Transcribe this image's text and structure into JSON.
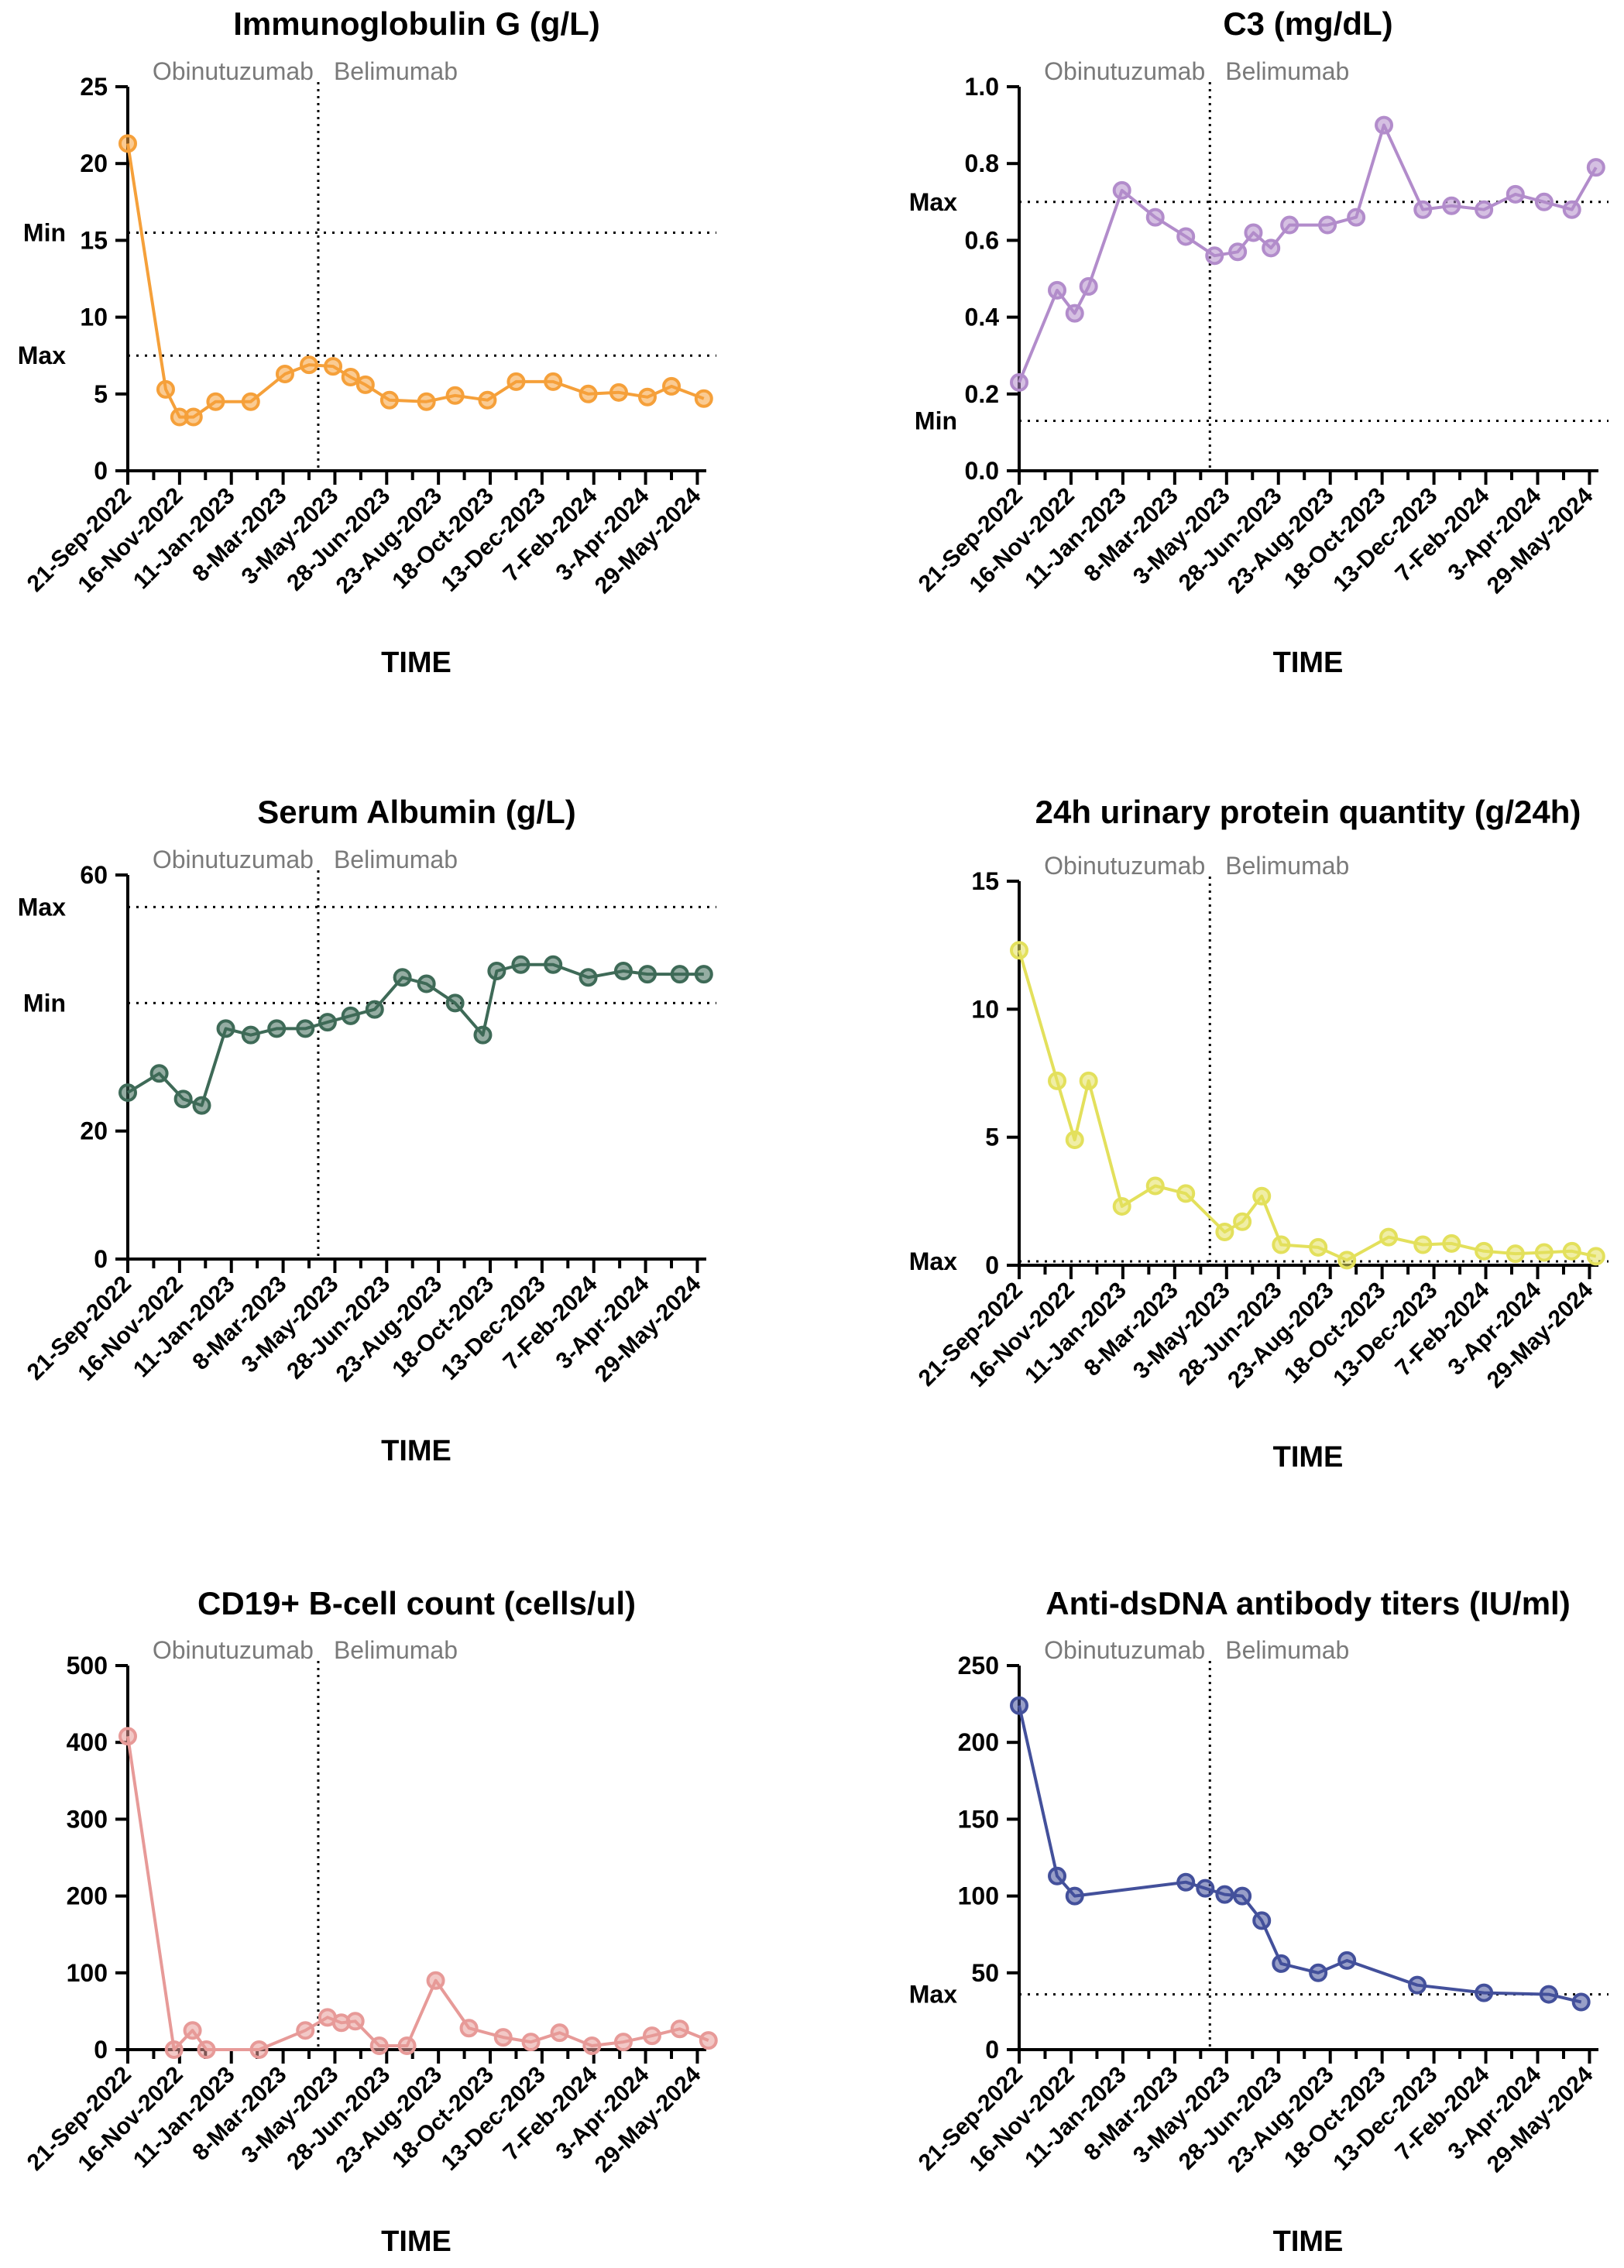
{
  "figure": {
    "x_axis_label": "TIME",
    "date_ticks": [
      "21-Sep-2022",
      "16-Nov-2022",
      "11-Jan-2023",
      "8-Mar-2023",
      "3-May-2023",
      "28-Jun-2023",
      "23-Aug-2023",
      "18-Oct-2023",
      "13-Dec-2023",
      "7-Feb-2024",
      "3-Apr-2024",
      "29-May-2024"
    ],
    "phase_labels": [
      "Obinutuzumab",
      "Belimumab"
    ],
    "phase_change_date": "2023-04-15"
  },
  "chart_data": [
    {
      "type": "line",
      "title": "Immunoglobulin G (g/L)",
      "color": "#F5A03A",
      "ylim": [
        0,
        25
      ],
      "yticks": [
        0,
        5,
        10,
        15,
        20,
        25
      ],
      "ylabel": "",
      "xlabel": "TIME",
      "reference_lines": [
        {
          "label": "Min",
          "value": 15.5
        },
        {
          "label": "Max",
          "value": 7.5
        }
      ],
      "series": [
        {
          "name": "IgG",
          "x": [
            "2022-09-21",
            "2022-11-01",
            "2022-11-16",
            "2022-12-01",
            "2022-12-25",
            "2023-02-01",
            "2023-03-10",
            "2023-04-05",
            "2023-05-01",
            "2023-05-20",
            "2023-06-05",
            "2023-07-01",
            "2023-08-10",
            "2023-09-10",
            "2023-10-15",
            "2023-11-15",
            "2023-12-25",
            "2024-02-01",
            "2024-03-05",
            "2024-04-05",
            "2024-05-01",
            "2024-06-05"
          ],
          "y": [
            21.3,
            5.3,
            3.5,
            3.5,
            4.5,
            4.5,
            6.3,
            6.9,
            6.8,
            6.1,
            5.6,
            4.6,
            4.5,
            4.9,
            4.6,
            5.8,
            5.8,
            5.0,
            5.1,
            4.8,
            5.5,
            4.7
          ]
        }
      ]
    },
    {
      "type": "line",
      "title": "C3 (mg/dL)",
      "color": "#B28CCB",
      "ylim": [
        0,
        1.0
      ],
      "yticks": [
        0.0,
        0.2,
        0.4,
        0.6,
        0.8,
        1.0
      ],
      "ytick_labels": [
        "0.0",
        "0.2",
        "0.4",
        "0.6",
        "0.8",
        "1.0"
      ],
      "ylabel": "",
      "xlabel": "TIME",
      "reference_lines": [
        {
          "label": "Max",
          "value": 0.7
        },
        {
          "label": "Min",
          "value": 0.13
        }
      ],
      "series": [
        {
          "name": "C3",
          "x": [
            "2022-09-21",
            "2022-11-01",
            "2022-11-20",
            "2022-12-05",
            "2023-01-10",
            "2023-02-15",
            "2023-03-20",
            "2023-04-20",
            "2023-05-15",
            "2023-06-01",
            "2023-06-20",
            "2023-07-10",
            "2023-08-20",
            "2023-09-20",
            "2023-10-20",
            "2023-12-01",
            "2024-01-01",
            "2024-02-05",
            "2024-03-10",
            "2024-04-10",
            "2024-05-10",
            "2024-06-05"
          ],
          "y": [
            0.23,
            0.47,
            0.41,
            0.48,
            0.73,
            0.66,
            0.61,
            0.56,
            0.57,
            0.62,
            0.58,
            0.64,
            0.64,
            0.66,
            0.9,
            0.68,
            0.69,
            0.68,
            0.72,
            0.7,
            0.68,
            0.79
          ]
        }
      ]
    },
    {
      "type": "line",
      "title": "Serum Albumin (g/L)",
      "color": "#3E6A57",
      "ylim": [
        0,
        60
      ],
      "yticks": [
        0,
        20,
        60
      ],
      "ylabel": "",
      "xlabel": "TIME",
      "reference_lines": [
        {
          "label": "Max",
          "value": 55
        },
        {
          "label": "Min",
          "value": 40
        }
      ],
      "series": [
        {
          "name": "Albumin",
          "x": [
            "2022-09-21",
            "2022-10-25",
            "2022-11-20",
            "2022-12-10",
            "2023-01-05",
            "2023-02-01",
            "2023-03-01",
            "2023-04-01",
            "2023-04-25",
            "2023-05-20",
            "2023-06-15",
            "2023-07-15",
            "2023-08-10",
            "2023-09-10",
            "2023-10-10",
            "2023-10-25",
            "2023-11-20",
            "2023-12-25",
            "2024-02-01",
            "2024-03-10",
            "2024-04-05",
            "2024-05-10",
            "2024-06-05"
          ],
          "y": [
            26,
            29,
            25,
            24,
            36,
            35,
            36,
            36,
            37,
            38,
            39,
            44,
            43,
            40,
            35,
            45,
            46,
            46,
            44,
            45,
            44.5,
            44.5,
            44.5
          ]
        }
      ]
    },
    {
      "type": "line",
      "title": "24h urinary protein quantity (g/24h)",
      "color": "#E3E05C",
      "ylim": [
        0,
        15
      ],
      "yticks": [
        0,
        5,
        10,
        15
      ],
      "ylabel": "",
      "xlabel": "TIME",
      "reference_lines": [
        {
          "label": "Max",
          "value": 0.15
        }
      ],
      "series": [
        {
          "name": "Urinary protein",
          "x": [
            "2022-09-21",
            "2022-11-01",
            "2022-11-20",
            "2022-12-05",
            "2023-01-10",
            "2023-02-15",
            "2023-03-20",
            "2023-05-01",
            "2023-05-20",
            "2023-06-10",
            "2023-07-01",
            "2023-08-10",
            "2023-09-10",
            "2023-10-25",
            "2023-12-01",
            "2024-01-01",
            "2024-02-05",
            "2024-03-10",
            "2024-04-10",
            "2024-05-10",
            "2024-06-05"
          ],
          "y": [
            12.3,
            7.2,
            4.9,
            7.2,
            2.3,
            3.1,
            2.8,
            1.3,
            1.7,
            2.7,
            0.8,
            0.7,
            0.2,
            1.1,
            0.8,
            0.85,
            0.55,
            0.45,
            0.5,
            0.55,
            0.35
          ]
        }
      ]
    },
    {
      "type": "line",
      "title": "CD19+ B-cell count (cells/ul)",
      "color": "#E79A98",
      "ylim": [
        0,
        500
      ],
      "yticks": [
        0,
        100,
        200,
        300,
        400,
        500
      ],
      "ylabel": "",
      "xlabel": "TIME",
      "reference_lines": [],
      "series": [
        {
          "name": "CD19+ B cells",
          "x": [
            "2022-09-21",
            "2022-11-10",
            "2022-11-30",
            "2022-12-15",
            "2023-02-10",
            "2023-04-01",
            "2023-04-25",
            "2023-05-10",
            "2023-05-25",
            "2023-06-20",
            "2023-07-20",
            "2023-08-20",
            "2023-09-25",
            "2023-11-01",
            "2023-12-01",
            "2024-01-01",
            "2024-02-05",
            "2024-03-10",
            "2024-04-10",
            "2024-05-10",
            "2024-06-10"
          ],
          "y": [
            408,
            0,
            25,
            0,
            0,
            25,
            42,
            35,
            37,
            5,
            5,
            90,
            28,
            16,
            10,
            22,
            5,
            10,
            18,
            27,
            12
          ]
        }
      ]
    },
    {
      "type": "line",
      "title": "Anti-dsDNA antibody titers (IU/ml)",
      "color": "#43509B",
      "ylim": [
        0,
        250
      ],
      "yticks": [
        0,
        50,
        100,
        150,
        200,
        250
      ],
      "ylabel": "",
      "xlabel": "TIME",
      "reference_lines": [
        {
          "label": "Max",
          "value": 36
        }
      ],
      "series": [
        {
          "name": "Anti-dsDNA",
          "x": [
            "2022-09-21",
            "2022-11-01",
            "2022-11-20",
            "2023-03-20",
            "2023-04-10",
            "2023-05-01",
            "2023-05-20",
            "2023-06-10",
            "2023-07-01",
            "2023-08-10",
            "2023-09-10",
            "2023-11-25",
            "2024-02-05",
            "2024-04-15",
            "2024-05-20"
          ],
          "y": [
            224,
            113,
            100,
            109,
            105,
            101,
            100,
            84,
            56,
            50,
            58,
            42,
            37,
            36,
            31
          ]
        }
      ]
    }
  ]
}
